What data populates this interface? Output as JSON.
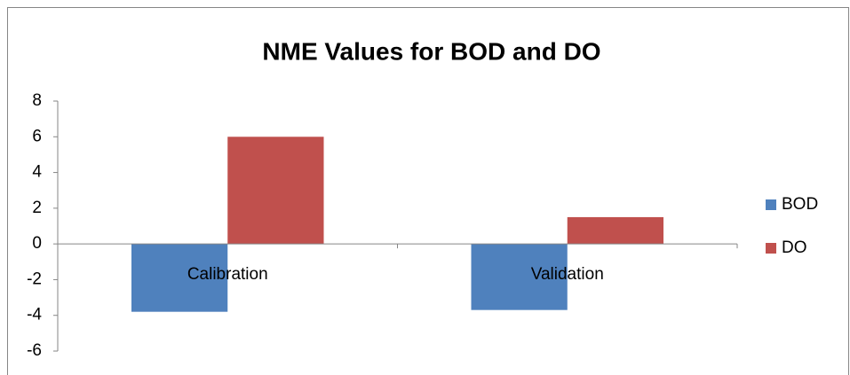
{
  "chart_data": {
    "type": "bar",
    "title": "NME Values for BOD and DO",
    "categories": [
      "Calibration",
      "Validation"
    ],
    "series": [
      {
        "name": "BOD",
        "color": "#4f81bd",
        "values": [
          -3.8,
          -3.7
        ]
      },
      {
        "name": "DO",
        "color": "#c0504d",
        "values": [
          6,
          1.5
        ]
      }
    ],
    "ylim": [
      -6,
      8
    ],
    "yticks": [
      -6,
      -4,
      -2,
      0,
      2,
      4,
      6,
      8
    ],
    "grid": false,
    "legend": "right"
  }
}
